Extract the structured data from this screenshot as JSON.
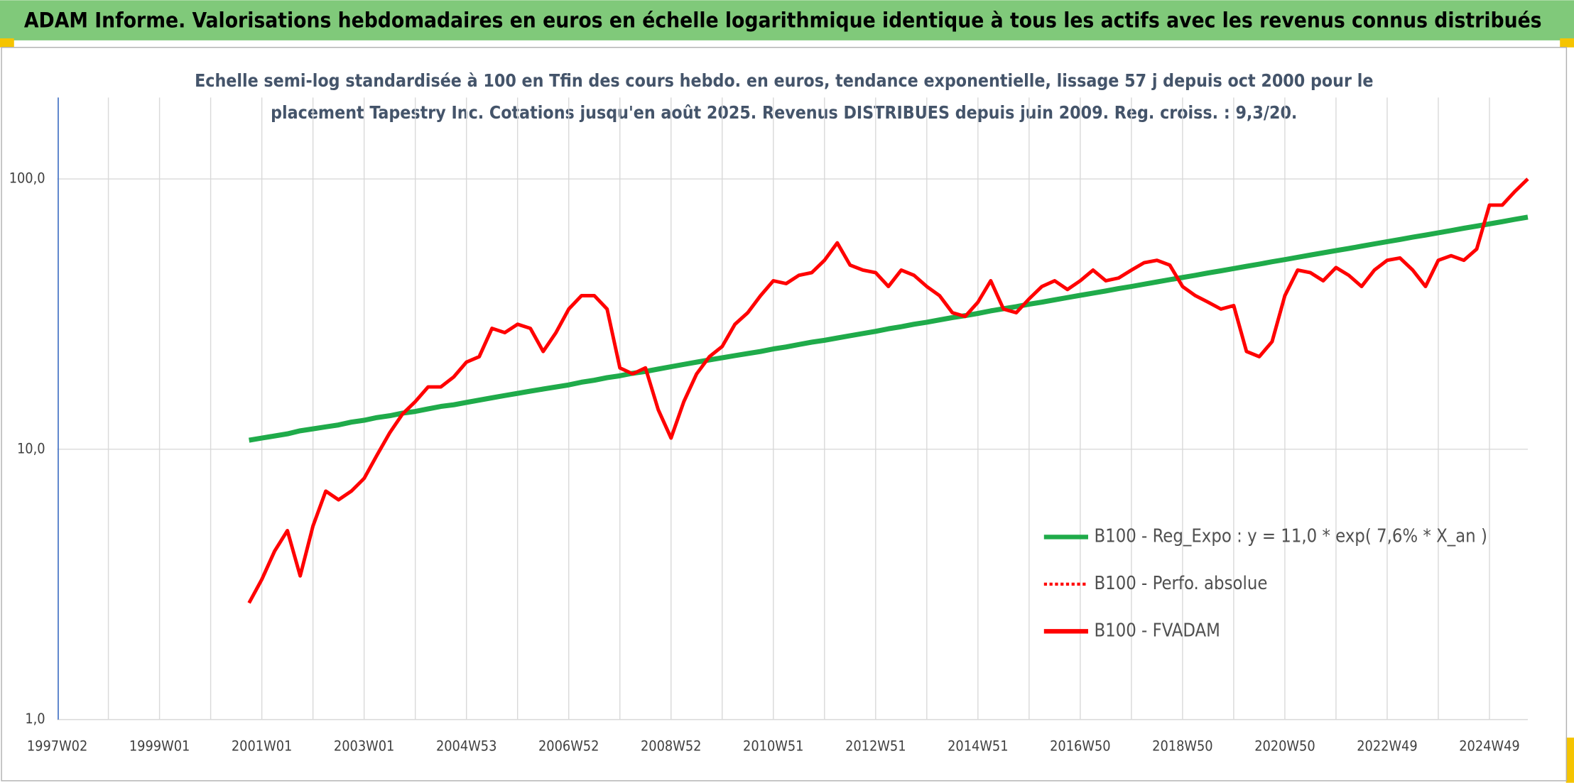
{
  "chart_data": {
    "type": "line",
    "title": "ADAM Informe. Valorisations hebdomadaires en euros en échelle logarithmique identique à tous les actifs avec les revenus connus distribués",
    "subtitle": [
      "Echelle semi-log standardisée à 100 en Tfin des cours hebdo. en euros, tendance exponentielle, lissage 57 j depuis oct 2000 pour le",
      "placement Tapestry Inc. Cotations jusqu'en août 2025. Revenus DISTRIBUES depuis juin 2009. Reg. croiss. : 9,3/20."
    ],
    "log_scale": true,
    "grid": true,
    "legend": "center right",
    "ylim": [
      1,
      200
    ],
    "yticks": [
      {
        "value": 1,
        "label": "1,0"
      },
      {
        "value": 10,
        "label": "10,0"
      },
      {
        "value": 100,
        "label": "100,0"
      }
    ],
    "categories": [
      "1997W02",
      null,
      null,
      null,
      null,
      null,
      null,
      null,
      "1999W01",
      null,
      null,
      null,
      null,
      null,
      null,
      null,
      "2001W01",
      null,
      null,
      null,
      null,
      null,
      null,
      null,
      "2003W01",
      null,
      null,
      null,
      null,
      null,
      null,
      null,
      "2004W53",
      null,
      null,
      null,
      null,
      null,
      null,
      null,
      "2006W52",
      null,
      null,
      null,
      null,
      null,
      null,
      null,
      "2008W52",
      null,
      null,
      null,
      null,
      null,
      null,
      null,
      "2010W51",
      null,
      null,
      null,
      null,
      null,
      null,
      null,
      "2012W51",
      null,
      null,
      null,
      null,
      null,
      null,
      null,
      "2014W51",
      null,
      null,
      null,
      null,
      null,
      null,
      null,
      "2016W50",
      null,
      null,
      null,
      null,
      null,
      null,
      null,
      "2018W50",
      null,
      null,
      null,
      null,
      null,
      null,
      null,
      "2020W50",
      null,
      null,
      null,
      null,
      null,
      null,
      null,
      "2022W49",
      null,
      null,
      null,
      null,
      null,
      null,
      null,
      "2024W49",
      null,
      null,
      null
    ],
    "series": [
      {
        "name": "B100 - Reg_Expo : y = 11,0 * exp( 7,6% *  X_an )",
        "color": "#1fab4a",
        "style": "solid",
        "values": [
          null,
          null,
          null,
          null,
          null,
          null,
          null,
          null,
          null,
          null,
          null,
          null,
          null,
          null,
          null,
          10.8,
          11.0,
          11.2,
          11.4,
          11.7,
          11.9,
          12.1,
          12.3,
          12.6,
          12.8,
          13.1,
          13.3,
          13.6,
          13.8,
          14.1,
          14.4,
          14.6,
          14.9,
          15.2,
          15.5,
          15.8,
          16.1,
          16.4,
          16.7,
          17.0,
          17.3,
          17.7,
          18.0,
          18.4,
          18.7,
          19.1,
          19.4,
          19.8,
          20.2,
          20.6,
          21.0,
          21.4,
          21.8,
          22.2,
          22.6,
          23.0,
          23.5,
          23.9,
          24.4,
          24.9,
          25.3,
          25.8,
          26.3,
          26.8,
          27.3,
          27.9,
          28.4,
          29.0,
          29.5,
          30.1,
          30.7,
          31.2,
          31.8,
          32.5,
          33.1,
          33.7,
          34.4,
          35.0,
          35.7,
          36.4,
          37.1,
          37.8,
          38.5,
          39.3,
          40.0,
          40.8,
          41.6,
          42.4,
          43.2,
          44.0,
          44.9,
          45.7,
          46.6,
          47.5,
          48.4,
          49.4,
          50.3,
          51.3,
          52.3,
          53.3,
          54.3,
          55.3,
          56.4,
          57.5,
          58.6,
          59.7,
          60.9,
          62.0,
          63.2,
          64.4,
          65.7,
          66.9,
          68.2,
          69.5,
          70.9,
          72.2
        ]
      },
      {
        "name": "B100 - Perfo. absolue",
        "color": "#ff0000",
        "style": "dotted",
        "values": [
          null,
          null,
          null,
          null,
          null,
          null,
          null,
          null,
          null,
          null,
          null,
          null,
          null,
          null,
          null,
          null,
          null,
          null,
          null,
          null,
          null,
          null,
          null,
          null,
          null,
          null,
          null,
          null,
          null,
          null,
          null,
          null,
          null,
          null,
          null,
          null,
          null,
          null,
          null,
          null,
          null,
          null,
          null,
          null,
          null,
          null,
          null,
          null,
          null,
          null,
          null,
          null,
          null,
          null,
          null,
          null,
          null,
          null,
          null,
          null,
          null,
          null,
          null,
          null,
          null,
          null,
          null,
          null,
          null,
          null,
          null,
          null,
          null,
          null,
          null,
          null,
          null,
          null,
          null,
          null,
          null,
          null,
          null,
          null,
          null,
          null,
          null,
          null,
          null,
          null,
          null,
          null,
          null,
          null,
          null,
          null,
          null,
          null,
          null,
          null,
          null,
          null,
          null,
          null,
          null,
          null,
          null,
          null,
          null,
          null,
          null,
          null,
          null,
          null,
          null,
          null
        ]
      },
      {
        "name": "B100 - FVADAM",
        "color": "#ff0000",
        "style": "solid",
        "values": [
          null,
          null,
          null,
          null,
          null,
          null,
          null,
          null,
          null,
          null,
          null,
          null,
          null,
          null,
          null,
          2.7,
          3.3,
          4.2,
          5.0,
          3.4,
          5.2,
          7.0,
          6.5,
          7.0,
          7.8,
          9.5,
          11.5,
          13.5,
          15,
          17,
          17,
          18.5,
          21,
          22,
          28,
          27,
          29,
          28,
          23,
          27,
          33,
          37,
          37,
          33,
          20,
          19,
          20,
          14,
          11,
          15,
          19,
          22,
          24,
          29,
          32,
          37,
          42,
          41,
          44,
          45,
          50,
          58,
          48,
          46,
          45,
          40,
          46,
          44,
          40,
          37,
          32,
          31,
          35,
          42,
          33,
          32,
          36,
          40,
          42,
          39,
          42,
          46,
          42,
          43,
          46,
          49,
          50,
          48,
          40,
          37,
          35,
          33,
          34,
          23,
          22,
          25,
          37,
          46,
          45,
          42,
          47,
          44,
          40,
          46,
          50,
          51,
          46,
          40,
          50,
          52,
          50,
          55,
          80,
          80,
          90,
          100
        ]
      }
    ]
  }
}
